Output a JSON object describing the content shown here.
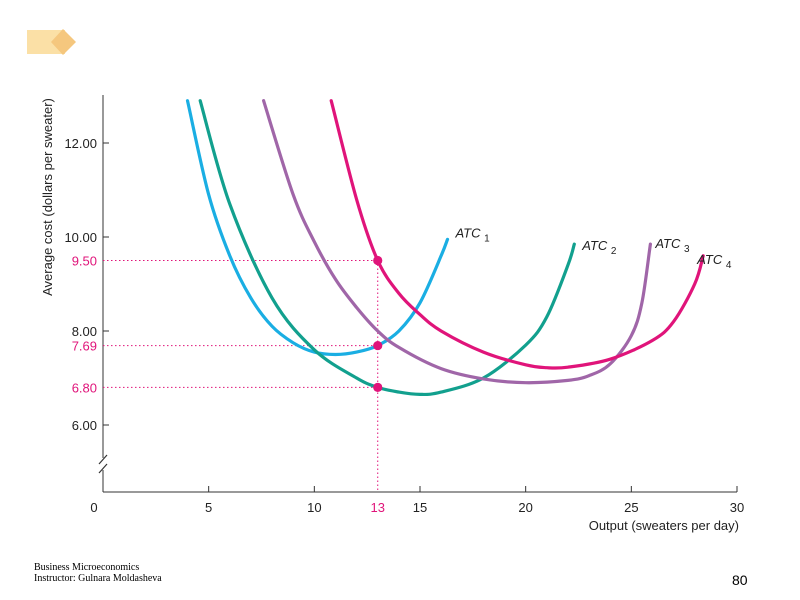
{
  "slide": {
    "footer_line1": "Business Microeconomics",
    "footer_line2": "Instructor: Gulnara Moldasheva",
    "page_number": "80"
  },
  "colors": {
    "atc1": "#1AAEE3",
    "atc2": "#12A08E",
    "atc3": "#A066A8",
    "atc4": "#E0147A",
    "highlight": "#E0147A",
    "axis": "#333333",
    "deco_light": "#FBE0A6",
    "deco_dark": "#F5C77E"
  },
  "chart_data": {
    "type": "line",
    "title": "",
    "xlabel": "Output (sweaters per day)",
    "ylabel": "Average cost (dollars per sweater)",
    "xlim": [
      0,
      30
    ],
    "ylim": [
      5,
      13
    ],
    "axis_break": true,
    "x_ticks": [
      0,
      5,
      10,
      15,
      20,
      25,
      30
    ],
    "x_tick_labels": [
      "0",
      "5",
      "10",
      "15",
      "20",
      "25",
      "30"
    ],
    "y_ticks": [
      6,
      8,
      10,
      12
    ],
    "y_tick_labels": [
      "6.00",
      "8.00",
      "10.00",
      "12.00"
    ],
    "series": [
      {
        "name": "ATC1",
        "label_main": "ATC",
        "label_sub": "1",
        "color_key": "atc1",
        "x": [
          4.0,
          5.0,
          6.0,
          7.0,
          8.0,
          9.0,
          10.0,
          11.0,
          12.0,
          13.0,
          14.0,
          15.0,
          16.0,
          16.3
        ],
        "y": [
          12.9,
          10.9,
          9.6,
          8.7,
          8.1,
          7.75,
          7.55,
          7.5,
          7.55,
          7.69,
          8.0,
          8.6,
          9.6,
          9.95
        ]
      },
      {
        "name": "ATC2",
        "label_main": "ATC",
        "label_sub": "2",
        "color_key": "atc2",
        "x": [
          4.6,
          6.0,
          8.0,
          10.0,
          12.0,
          13.0,
          14.0,
          15.0,
          16.0,
          18.0,
          20.0,
          21.0,
          22.0,
          22.3
        ],
        "y": [
          12.9,
          10.7,
          8.7,
          7.6,
          7.0,
          6.8,
          6.7,
          6.65,
          6.7,
          7.0,
          7.7,
          8.3,
          9.4,
          9.85
        ]
      },
      {
        "name": "ATC3",
        "label_main": "ATC",
        "label_sub": "3",
        "color_key": "atc3",
        "x": [
          7.6,
          9.0,
          10.0,
          11.0,
          12.0,
          13.0,
          14.0,
          16.0,
          18.0,
          20.0,
          22.0,
          23.0,
          24.0,
          25.0,
          25.5,
          25.9
        ],
        "y": [
          12.9,
          10.9,
          9.9,
          9.1,
          8.5,
          8.0,
          7.65,
          7.2,
          6.98,
          6.9,
          6.95,
          7.05,
          7.3,
          7.9,
          8.6,
          9.85
        ]
      },
      {
        "name": "ATC4",
        "label_main": "ATC",
        "label_sub": "4",
        "color_key": "atc4",
        "x": [
          10.8,
          12.0,
          13.0,
          14.0,
          15.0,
          16.0,
          18.0,
          20.0,
          21.0,
          22.0,
          24.0,
          26.0,
          27.0,
          28.0,
          28.4
        ],
        "y": [
          12.9,
          10.8,
          9.5,
          8.8,
          8.35,
          8.0,
          7.55,
          7.28,
          7.22,
          7.23,
          7.4,
          7.8,
          8.2,
          9.0,
          9.6
        ]
      }
    ],
    "highlight": {
      "x": 13,
      "x_label": "13",
      "points": [
        {
          "y": 9.5,
          "label": "9.50"
        },
        {
          "y": 7.69,
          "label": "7.69"
        },
        {
          "y": 6.8,
          "label": "6.80"
        }
      ]
    }
  }
}
